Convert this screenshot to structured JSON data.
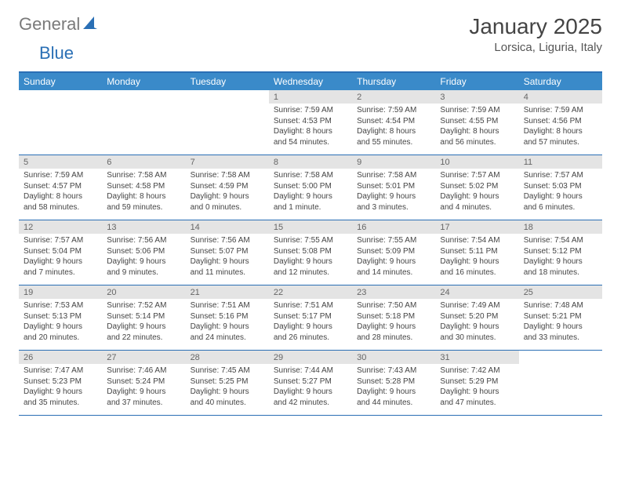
{
  "logo": {
    "general": "General",
    "blue": "Blue"
  },
  "title": "January 2025",
  "location": "Lorsica, Liguria, Italy",
  "brand_color": "#2a6fb5",
  "header_bg": "#3a8ac9",
  "num_bar_bg": "#e4e4e4",
  "days": [
    "Sunday",
    "Monday",
    "Tuesday",
    "Wednesday",
    "Thursday",
    "Friday",
    "Saturday"
  ],
  "weeks": [
    [
      {
        "n": "",
        "lines": [
          "",
          "",
          "",
          ""
        ]
      },
      {
        "n": "",
        "lines": [
          "",
          "",
          "",
          ""
        ]
      },
      {
        "n": "",
        "lines": [
          "",
          "",
          "",
          ""
        ]
      },
      {
        "n": "1",
        "lines": [
          "Sunrise: 7:59 AM",
          "Sunset: 4:53 PM",
          "Daylight: 8 hours",
          "and 54 minutes."
        ]
      },
      {
        "n": "2",
        "lines": [
          "Sunrise: 7:59 AM",
          "Sunset: 4:54 PM",
          "Daylight: 8 hours",
          "and 55 minutes."
        ]
      },
      {
        "n": "3",
        "lines": [
          "Sunrise: 7:59 AM",
          "Sunset: 4:55 PM",
          "Daylight: 8 hours",
          "and 56 minutes."
        ]
      },
      {
        "n": "4",
        "lines": [
          "Sunrise: 7:59 AM",
          "Sunset: 4:56 PM",
          "Daylight: 8 hours",
          "and 57 minutes."
        ]
      }
    ],
    [
      {
        "n": "5",
        "lines": [
          "Sunrise: 7:59 AM",
          "Sunset: 4:57 PM",
          "Daylight: 8 hours",
          "and 58 minutes."
        ]
      },
      {
        "n": "6",
        "lines": [
          "Sunrise: 7:58 AM",
          "Sunset: 4:58 PM",
          "Daylight: 8 hours",
          "and 59 minutes."
        ]
      },
      {
        "n": "7",
        "lines": [
          "Sunrise: 7:58 AM",
          "Sunset: 4:59 PM",
          "Daylight: 9 hours",
          "and 0 minutes."
        ]
      },
      {
        "n": "8",
        "lines": [
          "Sunrise: 7:58 AM",
          "Sunset: 5:00 PM",
          "Daylight: 9 hours",
          "and 1 minute."
        ]
      },
      {
        "n": "9",
        "lines": [
          "Sunrise: 7:58 AM",
          "Sunset: 5:01 PM",
          "Daylight: 9 hours",
          "and 3 minutes."
        ]
      },
      {
        "n": "10",
        "lines": [
          "Sunrise: 7:57 AM",
          "Sunset: 5:02 PM",
          "Daylight: 9 hours",
          "and 4 minutes."
        ]
      },
      {
        "n": "11",
        "lines": [
          "Sunrise: 7:57 AM",
          "Sunset: 5:03 PM",
          "Daylight: 9 hours",
          "and 6 minutes."
        ]
      }
    ],
    [
      {
        "n": "12",
        "lines": [
          "Sunrise: 7:57 AM",
          "Sunset: 5:04 PM",
          "Daylight: 9 hours",
          "and 7 minutes."
        ]
      },
      {
        "n": "13",
        "lines": [
          "Sunrise: 7:56 AM",
          "Sunset: 5:06 PM",
          "Daylight: 9 hours",
          "and 9 minutes."
        ]
      },
      {
        "n": "14",
        "lines": [
          "Sunrise: 7:56 AM",
          "Sunset: 5:07 PM",
          "Daylight: 9 hours",
          "and 11 minutes."
        ]
      },
      {
        "n": "15",
        "lines": [
          "Sunrise: 7:55 AM",
          "Sunset: 5:08 PM",
          "Daylight: 9 hours",
          "and 12 minutes."
        ]
      },
      {
        "n": "16",
        "lines": [
          "Sunrise: 7:55 AM",
          "Sunset: 5:09 PM",
          "Daylight: 9 hours",
          "and 14 minutes."
        ]
      },
      {
        "n": "17",
        "lines": [
          "Sunrise: 7:54 AM",
          "Sunset: 5:11 PM",
          "Daylight: 9 hours",
          "and 16 minutes."
        ]
      },
      {
        "n": "18",
        "lines": [
          "Sunrise: 7:54 AM",
          "Sunset: 5:12 PM",
          "Daylight: 9 hours",
          "and 18 minutes."
        ]
      }
    ],
    [
      {
        "n": "19",
        "lines": [
          "Sunrise: 7:53 AM",
          "Sunset: 5:13 PM",
          "Daylight: 9 hours",
          "and 20 minutes."
        ]
      },
      {
        "n": "20",
        "lines": [
          "Sunrise: 7:52 AM",
          "Sunset: 5:14 PM",
          "Daylight: 9 hours",
          "and 22 minutes."
        ]
      },
      {
        "n": "21",
        "lines": [
          "Sunrise: 7:51 AM",
          "Sunset: 5:16 PM",
          "Daylight: 9 hours",
          "and 24 minutes."
        ]
      },
      {
        "n": "22",
        "lines": [
          "Sunrise: 7:51 AM",
          "Sunset: 5:17 PM",
          "Daylight: 9 hours",
          "and 26 minutes."
        ]
      },
      {
        "n": "23",
        "lines": [
          "Sunrise: 7:50 AM",
          "Sunset: 5:18 PM",
          "Daylight: 9 hours",
          "and 28 minutes."
        ]
      },
      {
        "n": "24",
        "lines": [
          "Sunrise: 7:49 AM",
          "Sunset: 5:20 PM",
          "Daylight: 9 hours",
          "and 30 minutes."
        ]
      },
      {
        "n": "25",
        "lines": [
          "Sunrise: 7:48 AM",
          "Sunset: 5:21 PM",
          "Daylight: 9 hours",
          "and 33 minutes."
        ]
      }
    ],
    [
      {
        "n": "26",
        "lines": [
          "Sunrise: 7:47 AM",
          "Sunset: 5:23 PM",
          "Daylight: 9 hours",
          "and 35 minutes."
        ]
      },
      {
        "n": "27",
        "lines": [
          "Sunrise: 7:46 AM",
          "Sunset: 5:24 PM",
          "Daylight: 9 hours",
          "and 37 minutes."
        ]
      },
      {
        "n": "28",
        "lines": [
          "Sunrise: 7:45 AM",
          "Sunset: 5:25 PM",
          "Daylight: 9 hours",
          "and 40 minutes."
        ]
      },
      {
        "n": "29",
        "lines": [
          "Sunrise: 7:44 AM",
          "Sunset: 5:27 PM",
          "Daylight: 9 hours",
          "and 42 minutes."
        ]
      },
      {
        "n": "30",
        "lines": [
          "Sunrise: 7:43 AM",
          "Sunset: 5:28 PM",
          "Daylight: 9 hours",
          "and 44 minutes."
        ]
      },
      {
        "n": "31",
        "lines": [
          "Sunrise: 7:42 AM",
          "Sunset: 5:29 PM",
          "Daylight: 9 hours",
          "and 47 minutes."
        ]
      },
      {
        "n": "",
        "lines": [
          "",
          "",
          "",
          ""
        ]
      }
    ]
  ]
}
